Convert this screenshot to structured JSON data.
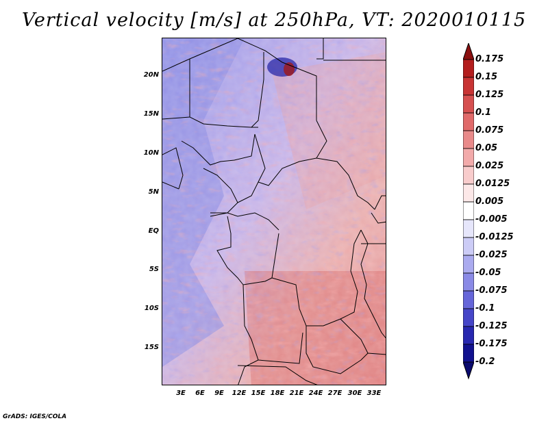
{
  "title": "Vertical velocity [m/s] at 250hPa, VT: 2020010115",
  "lat_labels": [
    "20N",
    "15N",
    "10N",
    "5N",
    "EQ",
    "5S",
    "10S",
    "15S"
  ],
  "lon_labels": [
    "3E",
    "6E",
    "9E",
    "12E",
    "15E",
    "18E",
    "21E",
    "24E",
    "27E",
    "30E",
    "33E"
  ],
  "colorbar": {
    "labels": [
      "0.175",
      "0.15",
      "0.125",
      "0.1",
      "0.075",
      "0.05",
      "0.025",
      "0.0125",
      "0.005",
      "-0.005",
      "-0.0125",
      "-0.025",
      "-0.05",
      "-0.075",
      "-0.1",
      "-0.125",
      "-0.175",
      "-0.2"
    ],
    "colors": [
      "#8b1010",
      "#b31e1e",
      "#c83434",
      "#d65050",
      "#e06a6a",
      "#e98a8a",
      "#f2aaaa",
      "#f8cccc",
      "#fce8e8",
      "#ffffff",
      "#e6e6fb",
      "#ccccf6",
      "#ababef",
      "#8a8ae6",
      "#6666d9",
      "#4646c8",
      "#2828b0",
      "#12128f",
      "#0a0a6e"
    ]
  },
  "footer": "GrADS: IGES/COLA"
}
